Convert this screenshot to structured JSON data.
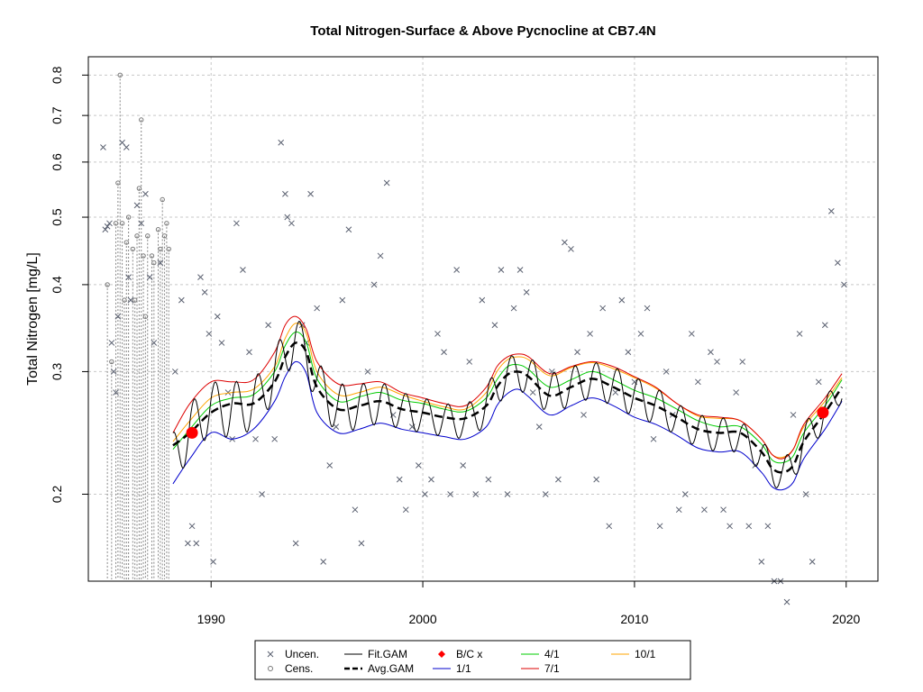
{
  "chart_data": {
    "type": "line",
    "title": "Total Nitrogen-Surface & Above Pycnocline at CB7.4N",
    "xlabel": "",
    "ylabel": "Total Nitrogen [mg/L]",
    "xlim": [
      1984.2,
      2021.5
    ],
    "ylim": [
      0.15,
      0.85
    ],
    "y_scale": "log",
    "grid": true,
    "x_ticks": [
      1990,
      2000,
      2010,
      2020
    ],
    "y_ticks": [
      0.2,
      0.3,
      0.4,
      0.5,
      0.6,
      0.7,
      0.8
    ],
    "legend_position": "bottom",
    "legend": {
      "entries": [
        {
          "label": "Uncen.",
          "kind": "x-marker",
          "color": "#5a6070"
        },
        {
          "label": "Cens.",
          "kind": "circle-marker",
          "color": "#777777"
        },
        {
          "label": "Fit.GAM",
          "kind": "line",
          "color": "#000000"
        },
        {
          "label": "Avg.GAM",
          "kind": "dashed-line",
          "color": "#000000"
        },
        {
          "label": "B/C x",
          "kind": "diamond-marker",
          "color": "#ff0000"
        },
        {
          "label": "1/1",
          "kind": "line",
          "color": "#0000cc"
        },
        {
          "label": "4/1",
          "kind": "line",
          "color": "#00cc00"
        },
        {
          "label": "7/1",
          "kind": "line",
          "color": "#dd0000"
        },
        {
          "label": "10/1",
          "kind": "line",
          "color": "#ffa500"
        }
      ]
    },
    "series": [
      {
        "name": "Avg.GAM",
        "color": "#000000",
        "style": "dashed",
        "x": [
          1988.2,
          1989,
          1990,
          1991,
          1992,
          1993,
          1993.5,
          1994,
          1994.5,
          1995,
          1996,
          1997,
          1998,
          1999,
          2000,
          2001,
          2002,
          2003,
          2003.5,
          2004,
          2004.5,
          2005,
          2006,
          2007,
          2008,
          2009,
          2010,
          2011,
          2012,
          2013,
          2014,
          2015,
          2016,
          2016.5,
          2017,
          2017.5,
          2018,
          2019,
          2019.8
        ],
        "y": [
          0.235,
          0.245,
          0.262,
          0.27,
          0.27,
          0.29,
          0.315,
          0.33,
          0.32,
          0.285,
          0.265,
          0.268,
          0.272,
          0.265,
          0.262,
          0.258,
          0.257,
          0.268,
          0.285,
          0.297,
          0.3,
          0.295,
          0.277,
          0.285,
          0.293,
          0.285,
          0.275,
          0.268,
          0.258,
          0.248,
          0.245,
          0.245,
          0.23,
          0.218,
          0.215,
          0.22,
          0.238,
          0.262,
          0.285
        ]
      },
      {
        "name": "1/1",
        "color": "#0000cc",
        "x": [
          1988.2,
          1989,
          1990,
          1991,
          1992,
          1993,
          1993.5,
          1994,
          1994.5,
          1995,
          1996,
          1997,
          1998,
          1999,
          2000,
          2001,
          2002,
          2003,
          2003.5,
          2004,
          2004.5,
          2005,
          2006,
          2007,
          2008,
          2009,
          2010,
          2011,
          2012,
          2013,
          2014,
          2015,
          2016,
          2016.5,
          2017,
          2017.5,
          2018,
          2019,
          2019.8
        ],
        "y": [
          0.207,
          0.225,
          0.245,
          0.24,
          0.248,
          0.272,
          0.295,
          0.31,
          0.298,
          0.262,
          0.245,
          0.248,
          0.253,
          0.248,
          0.245,
          0.242,
          0.24,
          0.25,
          0.268,
          0.279,
          0.283,
          0.276,
          0.26,
          0.268,
          0.275,
          0.268,
          0.258,
          0.252,
          0.243,
          0.233,
          0.23,
          0.23,
          0.215,
          0.205,
          0.203,
          0.208,
          0.225,
          0.248,
          0.272
        ]
      },
      {
        "name": "4/1",
        "color": "#00cc00",
        "x": [
          1988.2,
          1989,
          1990,
          1991,
          1992,
          1993,
          1993.5,
          1994,
          1994.5,
          1995,
          1996,
          1997,
          1998,
          1999,
          2000,
          2001,
          2002,
          2003,
          2003.5,
          2004,
          2004.5,
          2005,
          2006,
          2007,
          2008,
          2009,
          2010,
          2011,
          2012,
          2013,
          2014,
          2015,
          2016,
          2016.5,
          2017,
          2017.5,
          2018,
          2019,
          2019.8
        ],
        "y": [
          0.232,
          0.248,
          0.268,
          0.275,
          0.278,
          0.3,
          0.327,
          0.342,
          0.33,
          0.293,
          0.272,
          0.276,
          0.28,
          0.273,
          0.27,
          0.265,
          0.263,
          0.275,
          0.292,
          0.305,
          0.307,
          0.302,
          0.285,
          0.292,
          0.3,
          0.292,
          0.282,
          0.275,
          0.265,
          0.255,
          0.25,
          0.25,
          0.236,
          0.224,
          0.222,
          0.227,
          0.245,
          0.268,
          0.292
        ]
      },
      {
        "name": "7/1",
        "color": "#dd0000",
        "x": [
          1988.2,
          1989,
          1990,
          1991,
          1992,
          1993,
          1993.5,
          1994,
          1994.5,
          1995,
          1996,
          1997,
          1998,
          1999,
          2000,
          2001,
          2002,
          2003,
          2003.5,
          2004,
          2004.5,
          2005,
          2006,
          2007,
          2008,
          2009,
          2010,
          2011,
          2012,
          2013,
          2014,
          2015,
          2016,
          2016.5,
          2017,
          2017.5,
          2018,
          2019,
          2019.8
        ],
        "y": [
          0.245,
          0.27,
          0.29,
          0.29,
          0.292,
          0.32,
          0.35,
          0.36,
          0.345,
          0.31,
          0.288,
          0.288,
          0.29,
          0.28,
          0.275,
          0.27,
          0.268,
          0.285,
          0.305,
          0.315,
          0.318,
          0.315,
          0.298,
          0.305,
          0.31,
          0.305,
          0.295,
          0.285,
          0.27,
          0.26,
          0.258,
          0.255,
          0.24,
          0.228,
          0.225,
          0.232,
          0.252,
          0.275,
          0.298
        ]
      },
      {
        "name": "10/1",
        "color": "#ffa500",
        "x": [
          1988.2,
          1989,
          1990,
          1991,
          1992,
          1993,
          1993.5,
          1994,
          1994.5,
          1995,
          1996,
          1997,
          1998,
          1999,
          2000,
          2001,
          2002,
          2003,
          2003.5,
          2004,
          2004.5,
          2005,
          2006,
          2007,
          2008,
          2009,
          2010,
          2011,
          2012,
          2013,
          2014,
          2015,
          2016,
          2016.5,
          2017,
          2017.5,
          2018,
          2019,
          2019.8
        ],
        "y": [
          0.238,
          0.255,
          0.275,
          0.28,
          0.283,
          0.305,
          0.335,
          0.352,
          0.34,
          0.3,
          0.278,
          0.28,
          0.285,
          0.278,
          0.272,
          0.267,
          0.265,
          0.28,
          0.3,
          0.312,
          0.315,
          0.312,
          0.296,
          0.304,
          0.309,
          0.303,
          0.294,
          0.284,
          0.27,
          0.259,
          0.257,
          0.255,
          0.24,
          0.228,
          0.226,
          0.232,
          0.25,
          0.272,
          0.294
        ]
      }
    ],
    "points_uncensored": {
      "x": [
        1984.9,
        1985.0,
        1985.1,
        1985.2,
        1985.3,
        1985.4,
        1985.5,
        1985.6,
        1985.8,
        1986.0,
        1986.1,
        1986.2,
        1986.5,
        1986.7,
        1986.9,
        1987.1,
        1987.3,
        1987.6,
        1988.3,
        1988.6,
        1988.9,
        1989.1,
        1989.3,
        1989.5,
        1989.7,
        1989.9,
        1990.1,
        1990.3,
        1990.5,
        1990.8,
        1991.0,
        1991.2,
        1991.5,
        1991.8,
        1992.1,
        1992.4,
        1992.7,
        1993.0,
        1993.3,
        1993.5,
        1993.6,
        1993.8,
        1994.0,
        1994.3,
        1994.5,
        1994.7,
        1995.0,
        1995.3,
        1995.6,
        1995.9,
        1996.2,
        1996.5,
        1996.8,
        1997.1,
        1997.4,
        1997.7,
        1998.0,
        1998.3,
        1998.6,
        1998.9,
        1999.2,
        1999.5,
        1999.8,
        2000.1,
        2000.4,
        2000.7,
        2001.0,
        2001.3,
        2001.6,
        2001.9,
        2002.2,
        2002.5,
        2002.8,
        2003.1,
        2003.4,
        2003.7,
        2004.0,
        2004.3,
        2004.6,
        2004.9,
        2005.2,
        2005.5,
        2005.8,
        2006.1,
        2006.4,
        2006.7,
        2007.0,
        2007.3,
        2007.6,
        2007.9,
        2008.2,
        2008.5,
        2008.8,
        2009.1,
        2009.4,
        2009.7,
        2010.0,
        2010.3,
        2010.6,
        2010.9,
        2011.2,
        2011.5,
        2011.8,
        2012.1,
        2012.4,
        2012.7,
        2013.0,
        2013.3,
        2013.6,
        2013.9,
        2014.2,
        2014.5,
        2014.8,
        2015.1,
        2015.4,
        2015.7,
        2016.0,
        2016.3,
        2016.6,
        2016.9,
        2017.2,
        2017.5,
        2017.8,
        2018.1,
        2018.4,
        2018.7,
        2019.0,
        2019.3,
        2019.6,
        2019.9
      ],
      "y": [
        0.63,
        0.48,
        0.485,
        0.49,
        0.33,
        0.3,
        0.28,
        0.36,
        0.64,
        0.63,
        0.41,
        0.38,
        0.52,
        0.49,
        0.54,
        0.41,
        0.33,
        0.43,
        0.3,
        0.38,
        0.17,
        0.18,
        0.17,
        0.41,
        0.39,
        0.34,
        0.16,
        0.36,
        0.33,
        0.28,
        0.24,
        0.49,
        0.42,
        0.32,
        0.24,
        0.2,
        0.35,
        0.24,
        0.64,
        0.54,
        0.5,
        0.49,
        0.17,
        0.35,
        0.33,
        0.54,
        0.37,
        0.16,
        0.22,
        0.25,
        0.38,
        0.48,
        0.19,
        0.17,
        0.3,
        0.4,
        0.44,
        0.56,
        0.26,
        0.21,
        0.19,
        0.25,
        0.22,
        0.2,
        0.21,
        0.34,
        0.32,
        0.2,
        0.42,
        0.22,
        0.31,
        0.2,
        0.38,
        0.21,
        0.35,
        0.42,
        0.2,
        0.37,
        0.42,
        0.39,
        0.28,
        0.25,
        0.2,
        0.3,
        0.21,
        0.46,
        0.45,
        0.32,
        0.26,
        0.34,
        0.21,
        0.37,
        0.18,
        0.28,
        0.38,
        0.32,
        0.29,
        0.34,
        0.37,
        0.24,
        0.18,
        0.3,
        0.26,
        0.19,
        0.2,
        0.34,
        0.29,
        0.19,
        0.32,
        0.31,
        0.19,
        0.18,
        0.28,
        0.31,
        0.18,
        0.22,
        0.16,
        0.18,
        0.15,
        0.15,
        0.14,
        0.26,
        0.34,
        0.2,
        0.16,
        0.29,
        0.35,
        0.51,
        0.43,
        0.4
      ],
      "color": "#5a6070"
    },
    "points_censored": {
      "x": [
        1985.1,
        1985.3,
        1985.5,
        1985.6,
        1985.7,
        1985.8,
        1985.9,
        1986.0,
        1986.1,
        1986.3,
        1986.4,
        1986.5,
        1986.6,
        1986.7,
        1986.8,
        1986.9,
        1987.0,
        1987.2,
        1987.3,
        1987.5,
        1987.6,
        1987.7,
        1987.8,
        1987.9,
        1988.0
      ],
      "y": [
        0.4,
        0.31,
        0.49,
        0.56,
        0.8,
        0.49,
        0.38,
        0.46,
        0.5,
        0.45,
        0.38,
        0.47,
        0.55,
        0.69,
        0.44,
        0.36,
        0.47,
        0.44,
        0.43,
        0.48,
        0.45,
        0.53,
        0.47,
        0.49,
        0.45
      ],
      "color": "#777777"
    },
    "bc_points": {
      "x": [
        1989.1,
        2018.9
      ],
      "y": [
        0.245,
        0.262
      ],
      "color": "#ff0000"
    }
  }
}
